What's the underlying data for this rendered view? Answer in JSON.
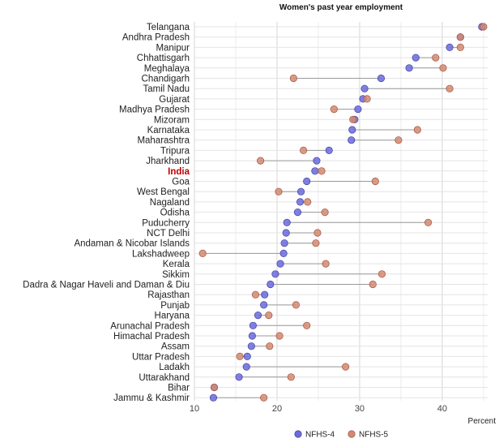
{
  "chart_data": {
    "type": "dot",
    "title": "Women's past year employment",
    "xlabel": "Percent",
    "ylabel": "",
    "xlim": [
      10,
      45.5
    ],
    "xticks": [
      10,
      20,
      30,
      40
    ],
    "grid": true,
    "legend_position": "bottom",
    "highlight_category": "India",
    "categories": [
      "Telangana",
      "Andhra Pradesh",
      "Manipur",
      "Chhattisgarh",
      "Meghalaya",
      "Chandigarh",
      "Tamil Nadu",
      "Gujarat",
      "Madhya Pradesh",
      "Mizoram",
      "Karnataka",
      "Maharashtra",
      "Tripura",
      "Jharkhand",
      "India",
      "Goa",
      "West Bengal",
      "Nagaland",
      "Odisha",
      "Puducherry",
      "NCT Delhi",
      "Andaman & Nicobar Islands",
      "Lakshadweep",
      "Kerala",
      "Sikkim",
      "Dadra & Nagar Haveli and Daman & Diu",
      "Rajasthan",
      "Punjab",
      "Haryana",
      "Arunachal Pradesh",
      "Himachal Pradesh",
      "Assam",
      "Uttar Pradesh",
      "Ladakh",
      "Uttarakhand",
      "Bihar",
      "Jammu & Kashmir"
    ],
    "series": [
      {
        "name": "NFHS-4",
        "color": "#6b6bdc",
        "values": [
          44.8,
          42.2,
          40.9,
          36.8,
          36.0,
          32.6,
          30.6,
          30.4,
          29.8,
          29.4,
          29.1,
          29.0,
          26.3,
          24.8,
          24.6,
          23.6,
          22.9,
          22.8,
          22.5,
          21.2,
          21.1,
          20.9,
          20.8,
          20.4,
          19.8,
          19.2,
          18.5,
          18.4,
          17.7,
          17.1,
          17.0,
          16.9,
          16.4,
          16.3,
          15.4,
          12.4,
          12.3
        ]
      },
      {
        "name": "NFHS-5",
        "color": "#d38a72",
        "values": [
          45.0,
          42.2,
          42.2,
          39.2,
          40.1,
          22.0,
          40.9,
          30.9,
          26.9,
          29.2,
          37.0,
          34.7,
          23.2,
          18.0,
          25.4,
          31.9,
          20.2,
          23.7,
          25.8,
          38.3,
          24.9,
          24.7,
          11.0,
          25.9,
          32.7,
          31.6,
          17.4,
          22.3,
          19.0,
          23.6,
          20.3,
          19.1,
          15.5,
          28.3,
          21.7,
          12.4,
          18.4
        ]
      }
    ]
  }
}
